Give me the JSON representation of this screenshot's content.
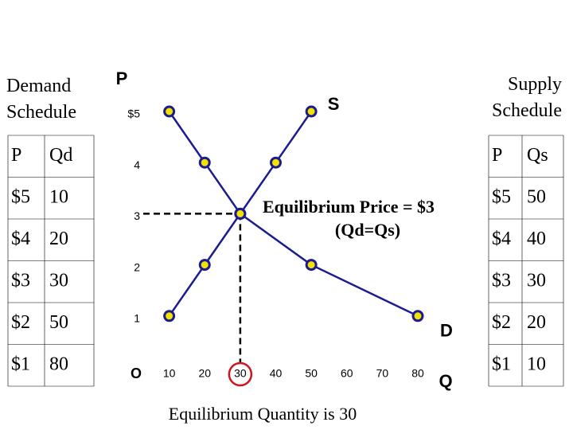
{
  "demand_schedule": {
    "title": "Demand Schedule",
    "columns": [
      "P",
      "Qd"
    ],
    "rows": [
      [
        "$5",
        "10"
      ],
      [
        "$4",
        "20"
      ],
      [
        "$3",
        "30"
      ],
      [
        "$2",
        "50"
      ],
      [
        "$1",
        "80"
      ]
    ]
  },
  "supply_schedule": {
    "title": "Supply Schedule",
    "columns": [
      "P",
      "Qs"
    ],
    "rows": [
      [
        "$5",
        "50"
      ],
      [
        "$4",
        "40"
      ],
      [
        "$3",
        "30"
      ],
      [
        "$2",
        "20"
      ],
      [
        "$1",
        "10"
      ]
    ]
  },
  "chart_data": {
    "type": "line",
    "x_label": "Q",
    "y_label": "P",
    "xlim": [
      0,
      80
    ],
    "ylim": [
      0,
      5
    ],
    "xticks": [
      {
        "value": 0,
        "label": "O"
      },
      10,
      20,
      30,
      40,
      50,
      60,
      70,
      80
    ],
    "yticks": [
      1,
      2,
      3,
      4,
      {
        "value": 5,
        "label": "$5"
      }
    ],
    "series": [
      {
        "name": "D",
        "color": "#1c1c8f",
        "x": [
          10,
          20,
          30,
          50,
          80
        ],
        "values": [
          5,
          4,
          3,
          2,
          1
        ]
      },
      {
        "name": "S",
        "color": "#1c1c8f",
        "x": [
          10,
          20,
          30,
          40,
          50
        ],
        "values": [
          1,
          2,
          3,
          4,
          5
        ]
      }
    ],
    "point_color": "#f2e200",
    "equilibrium": {
      "x": 30,
      "y": 3,
      "label": "Equilibrium Price = $3",
      "sublabel": "(Qd=Qs)",
      "x_note": "Equilibrium Quantity is 30"
    }
  }
}
